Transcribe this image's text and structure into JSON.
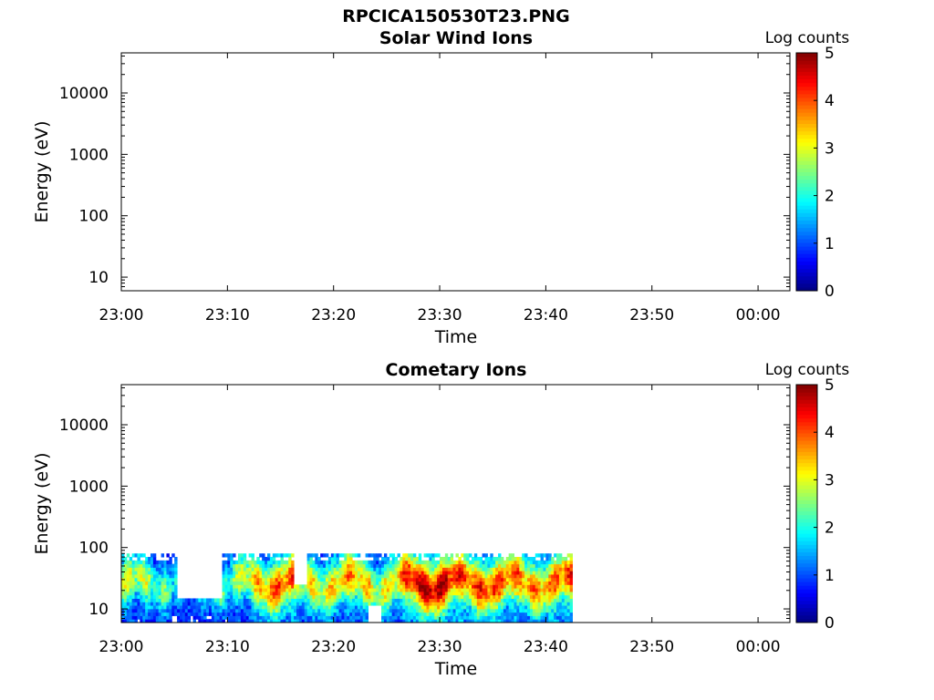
{
  "figure_title": "RPCICA150530T23.PNG",
  "chart_data": [
    {
      "type": "heatmap",
      "title": "Solar Wind Ions",
      "xlabel": "Time",
      "ylabel": "Energy (eV)",
      "x_ticks": [
        "23:00",
        "23:10",
        "23:20",
        "23:30",
        "23:40",
        "23:50",
        "00:00"
      ],
      "y_ticks": [
        "10",
        "100",
        "1000",
        "10000"
      ],
      "y_scale": "log",
      "ylim": [
        6,
        45000
      ],
      "xlim": [
        "23:00",
        "00:03"
      ],
      "colorbar": {
        "label": "Log counts",
        "ticks": [
          "0",
          "1",
          "2",
          "3",
          "4",
          "5"
        ],
        "range": [
          0,
          5
        ],
        "colormap": "jet"
      },
      "data_present": false
    },
    {
      "type": "heatmap",
      "title": "Cometary Ions",
      "xlabel": "Time",
      "ylabel": "Energy (eV)",
      "x_ticks": [
        "23:00",
        "23:10",
        "23:20",
        "23:30",
        "23:40",
        "23:50",
        "00:00"
      ],
      "y_ticks": [
        "10",
        "100",
        "1000",
        "10000"
      ],
      "y_scale": "log",
      "ylim": [
        6,
        45000
      ],
      "xlim": [
        "23:00",
        "00:03"
      ],
      "colorbar": {
        "label": "Log counts",
        "ticks": [
          "0",
          "1",
          "2",
          "3",
          "4",
          "5"
        ],
        "range": [
          0,
          5
        ],
        "colormap": "jet"
      },
      "data_present": true,
      "data_time_range": [
        "23:00",
        "23:42.5"
      ],
      "data_energy_range_eV": [
        6,
        80
      ],
      "profile": {
        "time_min": [
          0,
          3,
          6,
          9,
          12,
          15,
          18,
          21,
          24,
          27,
          30,
          33,
          36,
          39,
          42.5
        ],
        "peak_log_counts": [
          2.6,
          2.0,
          2.4,
          1.6,
          3.2,
          3.4,
          3.0,
          3.1,
          2.6,
          4.0,
          4.1,
          4.0,
          3.3,
          3.6,
          3.5
        ]
      }
    }
  ]
}
